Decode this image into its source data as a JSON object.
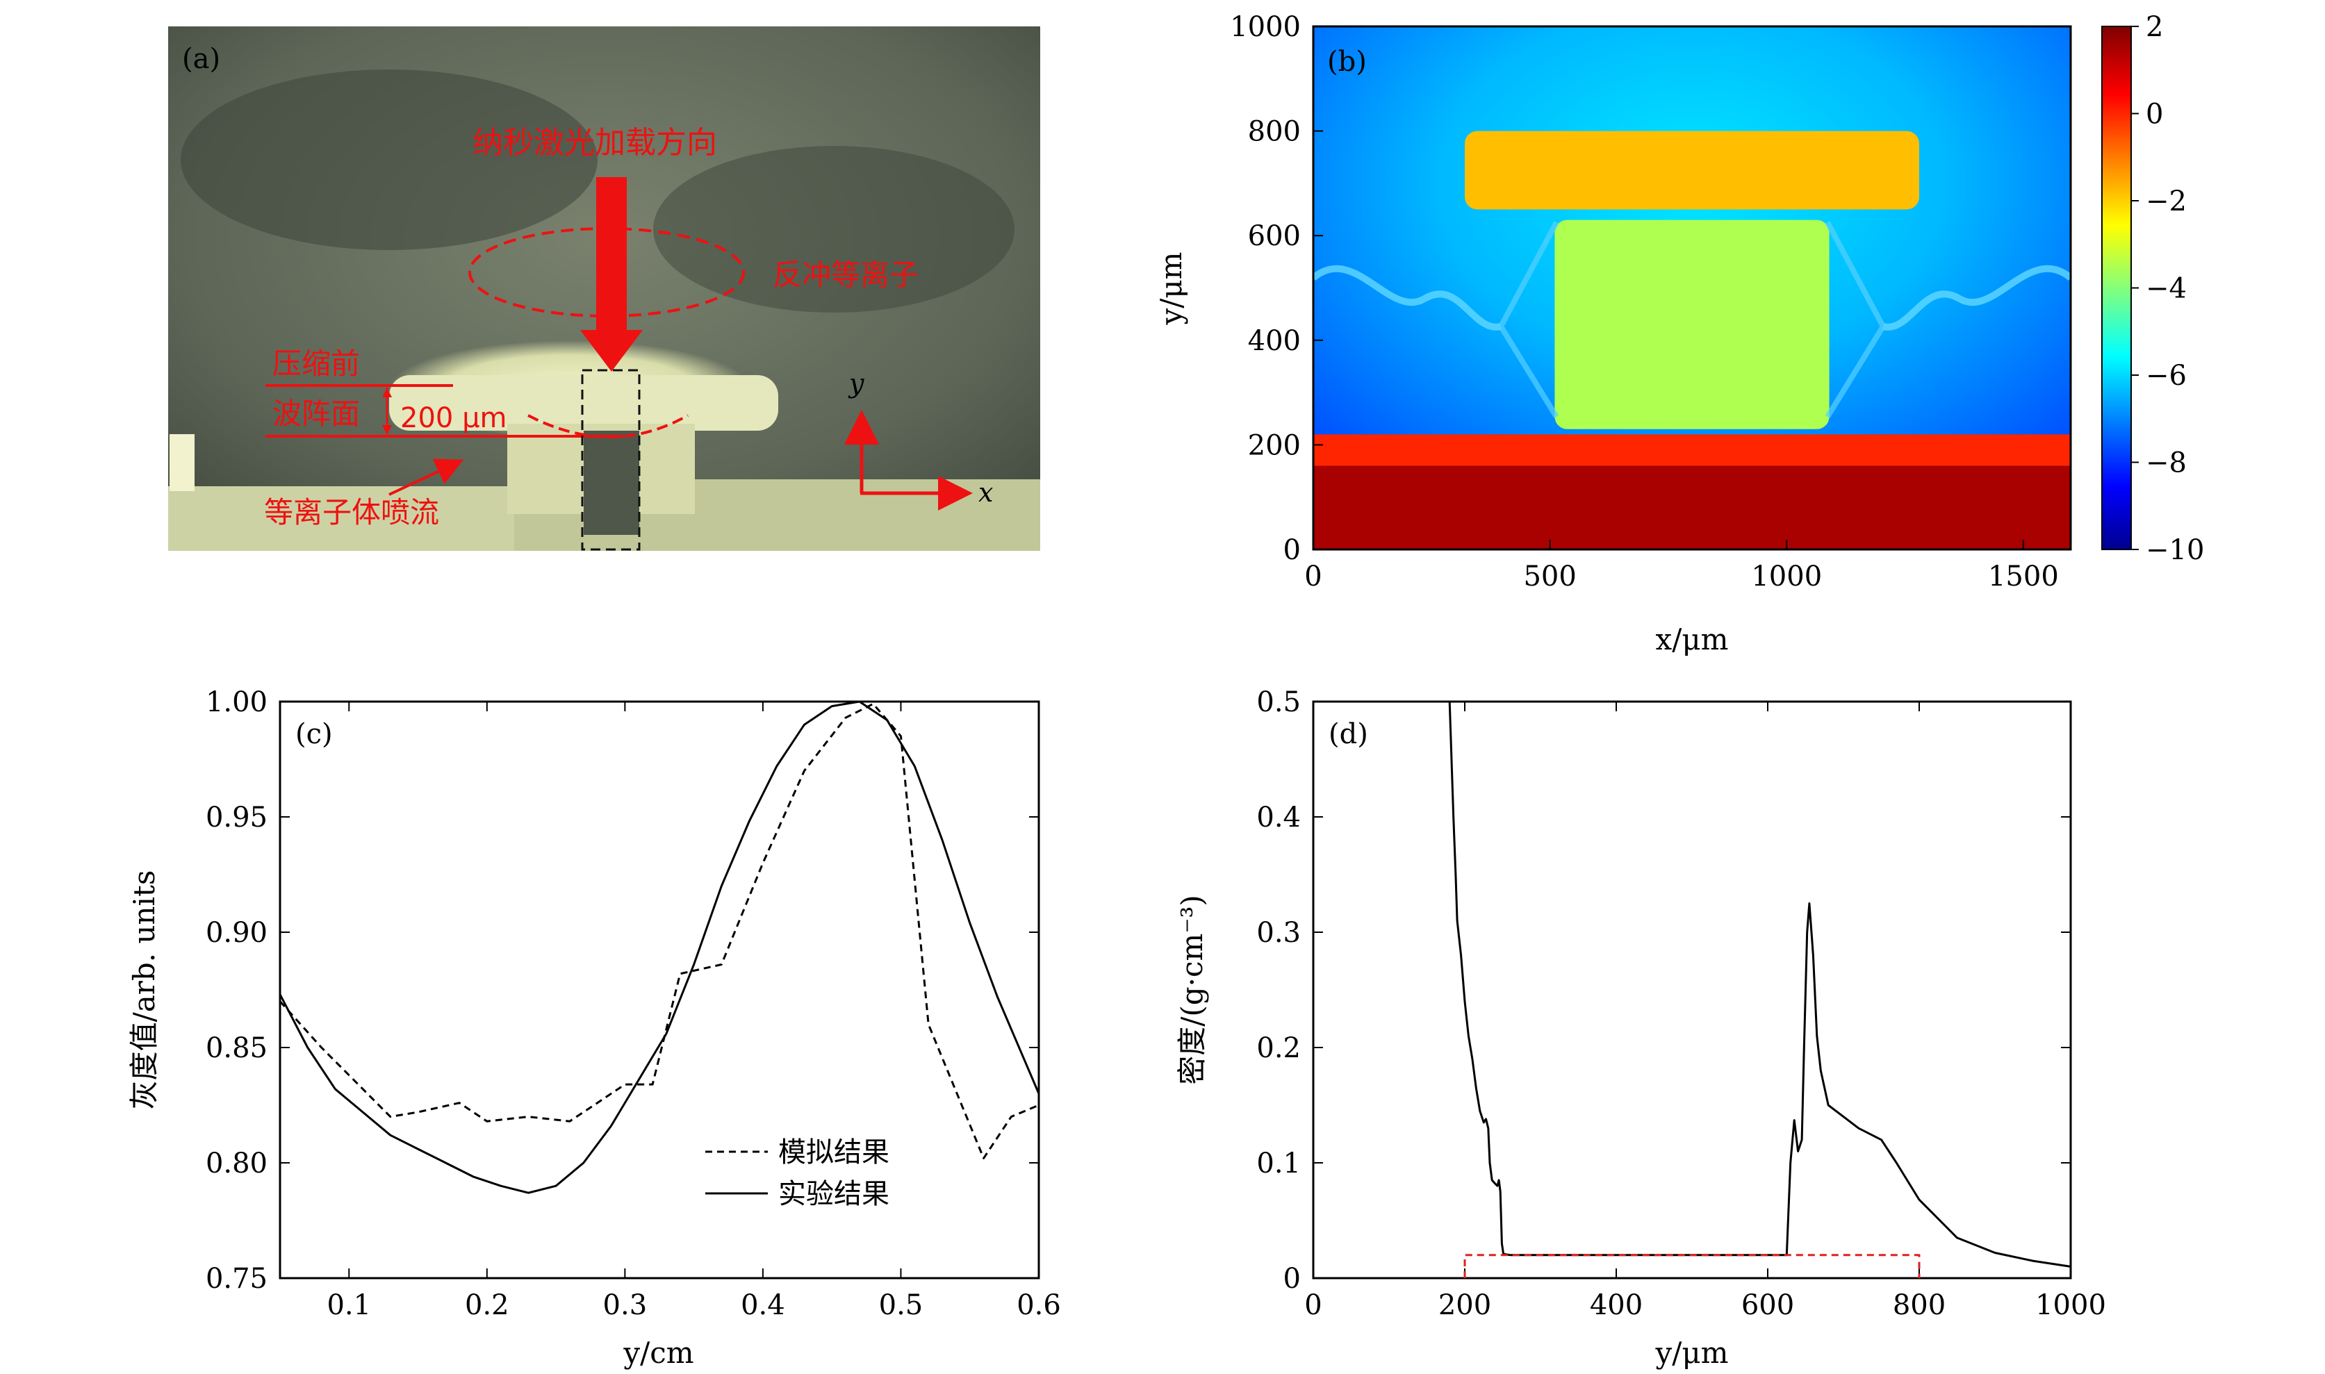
{
  "chart_data": [
    {
      "panel": "(a)",
      "type": "image",
      "annotations": {
        "laser_direction": "纳秒激光加载方向",
        "backflush_plasma": "反冲等离子",
        "before_compression": "压缩前",
        "wavefront": "波阵面",
        "displacement": "200 μm",
        "plasma_jet": "等离子体喷流",
        "axis_y": "y",
        "axis_x": "x"
      },
      "colors": {
        "annotation": "#ff1a1a",
        "background": "#5b6556",
        "bright": "#e8ecc0"
      }
    },
    {
      "panel": "(b)",
      "type": "heatmap",
      "xlabel": "x/μm",
      "ylabel": "y/μm",
      "xlim": [
        0,
        1600
      ],
      "ylim": [
        0,
        1000
      ],
      "xticks": [
        "0",
        "500",
        "1000",
        "1500"
      ],
      "yticks": [
        "0",
        "200",
        "400",
        "600",
        "800",
        "1000"
      ],
      "colorbar": {
        "range": [
          -10,
          2
        ],
        "ticks": [
          "2",
          "0",
          "−2",
          "−4",
          "−6",
          "−8",
          "−10"
        ]
      },
      "regions": [
        {
          "name": "substrate",
          "x": [
            0,
            1600
          ],
          "y": [
            0,
            160
          ],
          "value": 1.5
        },
        {
          "name": "transition-band",
          "x": [
            0,
            1600
          ],
          "y": [
            160,
            220
          ],
          "value": 0
        },
        {
          "name": "central-block",
          "x": [
            510,
            1090
          ],
          "y": [
            230,
            630
          ],
          "value": -3.5
        },
        {
          "name": "top-slab",
          "x": [
            320,
            1280
          ],
          "y": [
            650,
            800
          ],
          "value": -1.8
        }
      ]
    },
    {
      "panel": "(c)",
      "type": "line",
      "xlabel": "y/cm",
      "ylabel": "灰度值/arb. units",
      "xlim": [
        0.05,
        0.6
      ],
      "ylim": [
        0.75,
        1.0
      ],
      "xticks": [
        "0.1",
        "0.2",
        "0.3",
        "0.4",
        "0.5",
        "0.6"
      ],
      "yticks": [
        "0.75",
        "0.80",
        "0.85",
        "0.90",
        "0.95",
        "1.00"
      ],
      "legend_position": "lower-right",
      "series": [
        {
          "name": "模拟结果",
          "style": "dashed",
          "x": [
            0.05,
            0.08,
            0.1,
            0.13,
            0.15,
            0.18,
            0.2,
            0.23,
            0.26,
            0.28,
            0.3,
            0.32,
            0.34,
            0.37,
            0.4,
            0.43,
            0.46,
            0.48,
            0.5,
            0.52,
            0.56,
            0.58,
            0.6
          ],
          "y": [
            0.87,
            0.85,
            0.838,
            0.82,
            0.822,
            0.826,
            0.818,
            0.82,
            0.818,
            0.826,
            0.834,
            0.834,
            0.882,
            0.886,
            0.93,
            0.97,
            0.993,
            0.999,
            0.985,
            0.86,
            0.802,
            0.82,
            0.825
          ]
        },
        {
          "name": "实验结果",
          "style": "solid",
          "x": [
            0.05,
            0.07,
            0.09,
            0.11,
            0.13,
            0.15,
            0.17,
            0.19,
            0.21,
            0.23,
            0.25,
            0.27,
            0.29,
            0.31,
            0.33,
            0.35,
            0.37,
            0.39,
            0.41,
            0.43,
            0.45,
            0.47,
            0.49,
            0.51,
            0.53,
            0.55,
            0.57,
            0.6
          ],
          "y": [
            0.873,
            0.85,
            0.832,
            0.822,
            0.812,
            0.806,
            0.8,
            0.794,
            0.79,
            0.787,
            0.79,
            0.8,
            0.816,
            0.836,
            0.856,
            0.886,
            0.92,
            0.948,
            0.972,
            0.99,
            0.998,
            1.0,
            0.992,
            0.972,
            0.94,
            0.904,
            0.872,
            0.83
          ]
        }
      ]
    },
    {
      "panel": "(d)",
      "type": "line",
      "xlabel": "y/μm",
      "ylabel": "密度/(g·cm⁻³)",
      "xlim": [
        0,
        1000
      ],
      "ylim": [
        0,
        0.5
      ],
      "xticks": [
        "0",
        "200",
        "400",
        "600",
        "800",
        "1000"
      ],
      "yticks": [
        "0",
        "0.1",
        "0.2",
        "0.3",
        "0.4",
        "0.5"
      ],
      "series": [
        {
          "name": "",
          "style": "solid",
          "color": "#000000",
          "x": [
            180,
            183,
            185,
            188,
            190,
            195,
            200,
            205,
            210,
            215,
            220,
            225,
            228,
            231,
            233,
            236,
            240,
            243,
            245,
            247,
            249,
            251,
            260,
            400,
            600,
            625,
            630,
            635,
            640,
            645,
            648,
            652,
            655,
            660,
            665,
            670,
            680,
            700,
            720,
            750,
            770,
            800,
            850,
            900,
            950,
            1000
          ],
          "y": [
            0.5,
            0.44,
            0.4,
            0.35,
            0.31,
            0.28,
            0.24,
            0.21,
            0.19,
            0.165,
            0.145,
            0.135,
            0.138,
            0.13,
            0.1,
            0.085,
            0.082,
            0.08,
            0.085,
            0.075,
            0.03,
            0.021,
            0.02,
            0.02,
            0.02,
            0.02,
            0.1,
            0.137,
            0.11,
            0.12,
            0.2,
            0.3,
            0.325,
            0.28,
            0.21,
            0.18,
            0.15,
            0.14,
            0.13,
            0.12,
            0.1,
            0.068,
            0.035,
            0.022,
            0.015,
            0.01
          ]
        },
        {
          "name": "",
          "style": "dashed",
          "color": "#dd2222",
          "x": [
            200,
            200,
            800,
            800
          ],
          "y": [
            0,
            0.02,
            0.02,
            0
          ]
        }
      ]
    }
  ],
  "panel_labels": {
    "a": "(a)",
    "b": "(b)",
    "c": "(c)",
    "d": "(d)"
  },
  "legend": {
    "dashed": "模拟结果",
    "solid": "实验结果"
  },
  "colors": {
    "frame": "#000000",
    "red": "#ee1111"
  }
}
